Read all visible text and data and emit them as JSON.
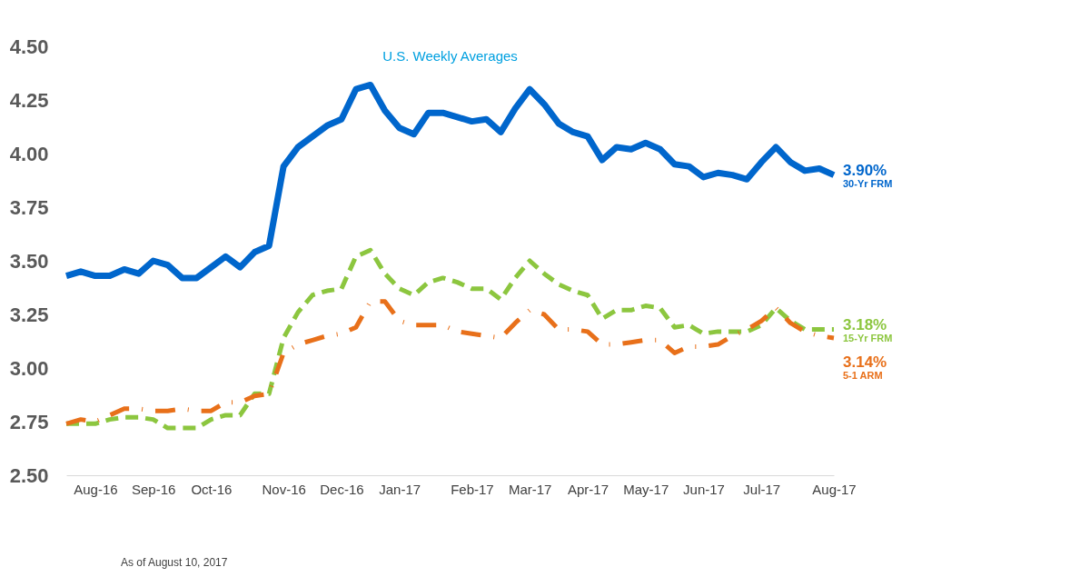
{
  "chart_data": {
    "type": "line",
    "subtitle": "U.S. Weekly Averages",
    "annotations": [
      "As of August 10, 2017"
    ],
    "categories": [
      null,
      null,
      "Aug-16",
      null,
      null,
      null,
      "Sep-16",
      null,
      null,
      null,
      "Oct-16",
      null,
      null,
      null,
      null,
      "Nov-16",
      null,
      null,
      null,
      "Dec-16",
      null,
      null,
      null,
      "Jan-17",
      null,
      null,
      null,
      null,
      "Feb-17",
      null,
      null,
      null,
      "Mar-17",
      null,
      null,
      null,
      "Apr-17",
      null,
      null,
      null,
      "May-17",
      null,
      null,
      null,
      "Jun-17",
      null,
      null,
      null,
      "Jul-17",
      null,
      null,
      null,
      null,
      "Aug-17"
    ],
    "ylim": [
      2.5,
      4.5
    ],
    "yticks": [
      {
        "value": 2.5,
        "label": "2.50"
      },
      {
        "value": 2.75,
        "label": "2.75"
      },
      {
        "value": 3,
        "label": "3.00"
      },
      {
        "value": 3.25,
        "label": "3.25"
      },
      {
        "value": 3.5,
        "label": "3.50"
      },
      {
        "value": 3.75,
        "label": "3.75"
      },
      {
        "value": 4,
        "label": "4.00"
      },
      {
        "value": 4.25,
        "label": "4.25"
      },
      {
        "value": 4.5,
        "label": "4.50"
      }
    ],
    "grid": false,
    "legend": false,
    "series": [
      {
        "name": "30-Yr FRM",
        "color": "#0066cc",
        "line_style": "solid",
        "values": [
          3.43,
          3.45,
          3.43,
          3.43,
          3.46,
          3.44,
          3.5,
          3.48,
          3.42,
          3.42,
          3.47,
          3.52,
          3.47,
          3.54,
          3.57,
          3.94,
          4.03,
          4.08,
          4.13,
          4.16,
          4.3,
          4.32,
          4.2,
          4.12,
          4.09,
          4.19,
          4.19,
          4.17,
          4.15,
          4.16,
          4.1,
          4.21,
          4.3,
          4.23,
          4.14,
          4.1,
          4.08,
          3.97,
          4.03,
          4.02,
          4.05,
          4.02,
          3.95,
          3.94,
          3.89,
          3.91,
          3.9,
          3.88,
          3.96,
          4.03,
          3.96,
          3.92,
          3.93,
          3.9
        ],
        "value_labels": [
          null,
          null,
          null,
          null,
          null,
          null,
          null,
          null,
          null,
          null,
          null,
          null,
          null,
          null,
          null,
          null,
          null,
          null,
          null,
          null,
          null,
          null,
          null,
          null,
          null,
          null,
          null,
          null,
          null,
          null,
          null,
          null,
          null,
          null,
          null,
          null,
          null,
          null,
          null,
          null,
          null,
          null,
          null,
          null,
          null,
          null,
          null,
          null,
          null,
          null,
          null,
          null,
          null,
          "3.90%"
        ]
      },
      {
        "name": "15-Yr FRM",
        "color": "#8cc63f",
        "line_style": "dashed",
        "values": [
          2.74,
          2.74,
          2.74,
          2.76,
          2.77,
          2.77,
          2.76,
          2.72,
          2.72,
          2.72,
          2.76,
          2.78,
          2.78,
          2.88,
          2.88,
          3.14,
          3.26,
          3.34,
          3.36,
          3.37,
          3.52,
          3.55,
          3.44,
          3.37,
          3.34,
          3.4,
          3.42,
          3.4,
          3.37,
          3.37,
          3.32,
          3.42,
          3.5,
          3.44,
          3.39,
          3.36,
          3.34,
          3.23,
          3.27,
          3.27,
          3.29,
          3.28,
          3.19,
          3.2,
          3.16,
          3.17,
          3.17,
          3.17,
          3.2,
          3.28,
          3.22,
          3.18,
          3.18,
          3.18
        ],
        "value_labels": [
          null,
          null,
          null,
          null,
          null,
          null,
          null,
          null,
          null,
          null,
          null,
          null,
          null,
          null,
          null,
          null,
          null,
          null,
          null,
          null,
          null,
          null,
          null,
          null,
          null,
          null,
          null,
          null,
          null,
          null,
          null,
          null,
          null,
          null,
          null,
          null,
          null,
          null,
          null,
          null,
          null,
          null,
          null,
          null,
          null,
          null,
          null,
          null,
          null,
          null,
          null,
          null,
          null,
          "3.18%"
        ]
      },
      {
        "name": "5-1 ARM",
        "color": "#e8701a",
        "line_style": "dotted",
        "values": [
          2.74,
          2.76,
          2.75,
          2.78,
          2.81,
          2.81,
          2.8,
          2.8,
          2.81,
          2.8,
          2.8,
          2.84,
          2.84,
          2.87,
          2.88,
          3.07,
          3.11,
          3.13,
          3.15,
          3.16,
          3.19,
          3.31,
          3.31,
          3.22,
          3.2,
          3.2,
          3.2,
          3.17,
          3.16,
          3.15,
          3.14,
          3.21,
          3.27,
          3.25,
          3.18,
          3.18,
          3.17,
          3.11,
          3.11,
          3.12,
          3.13,
          3.13,
          3.07,
          3.1,
          3.1,
          3.11,
          3.15,
          3.18,
          3.22,
          3.28,
          3.21,
          3.17,
          3.15,
          3.14
        ],
        "value_labels": [
          null,
          null,
          null,
          null,
          null,
          null,
          null,
          null,
          null,
          null,
          null,
          null,
          null,
          null,
          null,
          null,
          null,
          null,
          null,
          null,
          null,
          null,
          null,
          null,
          null,
          null,
          null,
          null,
          null,
          null,
          null,
          null,
          null,
          null,
          null,
          null,
          null,
          null,
          null,
          null,
          null,
          null,
          null,
          null,
          null,
          null,
          null,
          null,
          null,
          null,
          null,
          null,
          null,
          "3.14%"
        ]
      }
    ]
  }
}
